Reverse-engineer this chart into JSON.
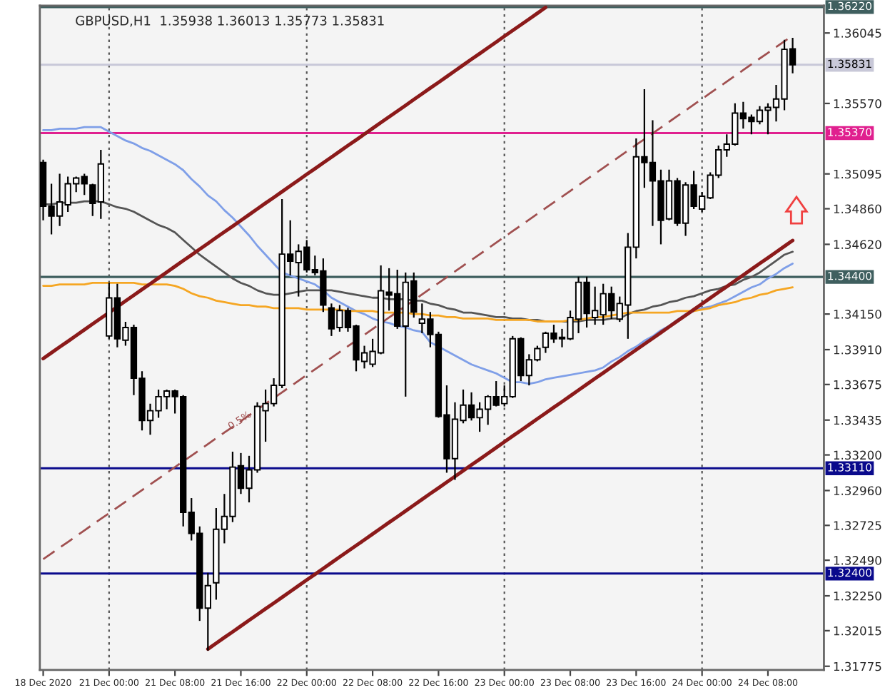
{
  "chart_data": {
    "type": "candlestick",
    "title": "GBPUSD,H1  1.35938 1.36013 1.35773 1.35831",
    "categories": [
      "18 Dec 2020",
      null,
      null,
      null,
      null,
      null,
      null,
      null,
      "21 Dec 00:00",
      null,
      null,
      null,
      null,
      null,
      null,
      null,
      "21 Dec 08:00",
      null,
      null,
      null,
      null,
      null,
      null,
      null,
      "21 Dec 16:00",
      null,
      null,
      null,
      null,
      null,
      null,
      null,
      "22 Dec 00:00",
      null,
      null,
      null,
      null,
      null,
      null,
      null,
      "22 Dec 08:00",
      null,
      null,
      null,
      null,
      null,
      null,
      null,
      "22 Dec 16:00",
      null,
      null,
      null,
      null,
      null,
      null,
      null,
      "23 Dec 00:00",
      null,
      null,
      null,
      null,
      null,
      null,
      null,
      "23 Dec 08:00",
      null,
      null,
      null,
      null,
      null,
      null,
      null,
      "23 Dec 16:00",
      null,
      null,
      null,
      null,
      null,
      null,
      null,
      "24 Dec 00:00",
      null,
      null,
      null,
      null,
      null,
      null,
      null,
      "24 Dec 08:00",
      null,
      null,
      null
    ],
    "ohlc": [
      [
        1.35172,
        1.35191,
        1.34782,
        1.34877
      ],
      [
        1.34877,
        1.35029,
        1.34687,
        1.34811
      ],
      [
        1.34811,
        1.35096,
        1.34744,
        1.34906
      ],
      [
        1.34887,
        1.35077,
        1.34839,
        1.35029
      ],
      [
        1.35029,
        1.35077,
        1.34972,
        1.35067
      ],
      [
        1.35077,
        1.35096,
        1.34953,
        1.35029
      ],
      [
        1.3502,
        1.35029,
        1.34811,
        1.34896
      ],
      [
        1.34906,
        1.35257,
        1.34792,
        1.35162
      ],
      [
        1.34002,
        1.34364,
        1.33983,
        1.34259
      ],
      [
        1.34259,
        1.34354,
        1.33926,
        1.33983
      ],
      [
        1.33974,
        1.34097,
        1.33936,
        1.34059
      ],
      [
        1.34059,
        1.34078,
        1.33603,
        1.33717
      ],
      [
        1.33717,
        1.33764,
        1.33365,
        1.33432
      ],
      [
        1.33432,
        1.33546,
        1.33336,
        1.33498
      ],
      [
        1.33498,
        1.33641,
        1.33451,
        1.33593
      ],
      [
        1.33593,
        1.33641,
        1.33508,
        1.33631
      ],
      [
        1.33631,
        1.33641,
        1.33479,
        1.33593
      ],
      [
        1.33593,
        1.33603,
        1.32718,
        1.32813
      ],
      [
        1.32813,
        1.32909,
        1.32623,
        1.32671
      ],
      [
        1.32671,
        1.32718,
        1.32081,
        1.32167
      ],
      [
        1.32167,
        1.32405,
        1.31881,
        1.32319
      ],
      [
        1.32338,
        1.32842,
        1.32224,
        1.32699
      ],
      [
        1.32699,
        1.32937,
        1.32604,
        1.32785
      ],
      [
        1.32785,
        1.33222,
        1.32747,
        1.33118
      ],
      [
        1.33127,
        1.33213,
        1.32937,
        1.32975
      ],
      [
        1.32975,
        1.33194,
        1.3288,
        1.33099
      ],
      [
        1.33099,
        1.33555,
        1.3308,
        1.33527
      ],
      [
        1.33498,
        1.33641,
        1.33289,
        1.33546
      ],
      [
        1.33546,
        1.33717,
        1.33527,
        1.33669
      ],
      [
        1.33669,
        1.34925,
        1.3365,
        1.34554
      ],
      [
        1.34554,
        1.34782,
        1.34411,
        1.34506
      ],
      [
        1.34497,
        1.3462,
        1.34268,
        1.34573
      ],
      [
        1.34601,
        1.34649,
        1.3443,
        1.34449
      ],
      [
        1.34449,
        1.34544,
        1.34411,
        1.3443
      ],
      [
        1.3444,
        1.34525,
        1.34164,
        1.34211
      ],
      [
        1.34192,
        1.34221,
        1.34002,
        1.3405
      ],
      [
        1.34059,
        1.34211,
        1.34031,
        1.34173
      ],
      [
        1.34173,
        1.34192,
        1.34031,
        1.34059
      ],
      [
        1.34069,
        1.34078,
        1.33764,
        1.33841
      ],
      [
        1.33831,
        1.33936,
        1.33783,
        1.33888
      ],
      [
        1.33812,
        1.33983,
        1.33793,
        1.33898
      ],
      [
        1.33888,
        1.34478,
        1.33879,
        1.34307
      ],
      [
        1.34297,
        1.34459,
        1.34173,
        1.34278
      ],
      [
        1.34287,
        1.34449,
        1.3405,
        1.34069
      ],
      [
        1.34069,
        1.3443,
        1.33593,
        1.34364
      ],
      [
        1.34373,
        1.3443,
        1.34126,
        1.34164
      ],
      [
        1.34088,
        1.34221,
        1.34021,
        1.34116
      ],
      [
        1.34116,
        1.34164,
        1.33926,
        1.34012
      ],
      [
        1.34012,
        1.34031,
        1.33451,
        1.3346
      ],
      [
        1.3347,
        1.33669,
        1.3308,
        1.33175
      ],
      [
        1.33175,
        1.33555,
        1.33032,
        1.33441
      ],
      [
        1.33432,
        1.33641,
        1.33413,
        1.33536
      ],
      [
        1.33536,
        1.33622,
        1.33432,
        1.33451
      ],
      [
        1.33451,
        1.33555,
        1.33356,
        1.33508
      ],
      [
        1.33508,
        1.33603,
        1.33403,
        1.33593
      ],
      [
        1.33593,
        1.33698,
        1.33527,
        1.33536
      ],
      [
        1.33546,
        1.33669,
        1.33527,
        1.33593
      ],
      [
        1.33593,
        1.34002,
        1.33584,
        1.33983
      ],
      [
        1.33983,
        1.33993,
        1.33698,
        1.33736
      ],
      [
        1.33736,
        1.33879,
        1.33669,
        1.33841
      ],
      [
        1.33841,
        1.33936,
        1.33831,
        1.33917
      ],
      [
        1.33926,
        1.34031,
        1.33888,
        1.34021
      ],
      [
        1.34021,
        1.34078,
        1.33955,
        1.33983
      ],
      [
        1.33983,
        1.3405,
        1.33926,
        1.33993
      ],
      [
        1.33983,
        1.34173,
        1.33974,
        1.34126
      ],
      [
        1.34116,
        1.34402,
        1.34021,
        1.34364
      ],
      [
        1.34364,
        1.34402,
        1.34059,
        1.34154
      ],
      [
        1.34126,
        1.34335,
        1.34078,
        1.34173
      ],
      [
        1.34145,
        1.34354,
        1.34078,
        1.34287
      ],
      [
        1.34287,
        1.34335,
        1.34116,
        1.34173
      ],
      [
        1.34116,
        1.34268,
        1.34097,
        1.34221
      ],
      [
        1.34211,
        1.34696,
        1.33983,
        1.34601
      ],
      [
        1.34601,
        1.35334,
        1.34525,
        1.3521
      ],
      [
        1.3521,
        1.35666,
        1.35001,
        1.35172
      ],
      [
        1.35172,
        1.35457,
        1.34744,
        1.35048
      ],
      [
        1.35048,
        1.35124,
        1.3462,
        1.34782
      ],
      [
        1.34792,
        1.35124,
        1.34782,
        1.35048
      ],
      [
        1.35048,
        1.35067,
        1.34744,
        1.34763
      ],
      [
        1.34763,
        1.35039,
        1.34677,
        1.3502
      ],
      [
        1.3502,
        1.35115,
        1.34858,
        1.34877
      ],
      [
        1.34858,
        1.34972,
        1.34839,
        1.34944
      ],
      [
        1.34934,
        1.35105,
        1.34925,
        1.35086
      ],
      [
        1.35086,
        1.35286,
        1.35067,
        1.35257
      ],
      [
        1.35257,
        1.35362,
        1.3521,
        1.35296
      ],
      [
        1.35296,
        1.35571,
        1.35286,
        1.35505
      ],
      [
        1.35505,
        1.35581,
        1.354,
        1.35467
      ],
      [
        1.35476,
        1.35495,
        1.35362,
        1.35448
      ],
      [
        1.35448,
        1.35552,
        1.35429,
        1.35524
      ],
      [
        1.35524,
        1.35571,
        1.35362,
        1.35543
      ],
      [
        1.35543,
        1.35695,
        1.35448,
        1.356
      ],
      [
        1.356,
        1.35999,
        1.35524,
        1.35935
      ],
      [
        1.35938,
        1.36013,
        1.35773,
        1.35831
      ]
    ],
    "series": [
      {
        "type": "line",
        "color": "#7f9fe8",
        "line_style": "solid",
        "values": [
          1.3539,
          1.3539,
          1.354,
          1.354,
          1.354,
          1.3541,
          1.3541,
          1.3541,
          1.3538,
          1.3535,
          1.3532,
          1.353,
          1.3527,
          1.3525,
          1.3522,
          1.3519,
          1.3516,
          1.3512,
          1.3506,
          1.3501,
          1.3495,
          1.3491,
          1.3485,
          1.348,
          1.3474,
          1.3468,
          1.3461,
          1.3455,
          1.3449,
          1.3443,
          1.3441,
          1.3439,
          1.3437,
          1.3435,
          1.3431,
          1.3426,
          1.3423,
          1.342,
          1.3417,
          1.3415,
          1.3412,
          1.341,
          1.3409,
          1.3407,
          1.3406,
          1.3404,
          1.3403,
          1.3396,
          1.3393,
          1.339,
          1.3387,
          1.3384,
          1.3381,
          1.3379,
          1.3377,
          1.3375,
          1.3372,
          1.3369,
          1.3369,
          1.3368,
          1.3369,
          1.3371,
          1.3372,
          1.3373,
          1.3374,
          1.3375,
          1.3376,
          1.3377,
          1.3379,
          1.3383,
          1.3386,
          1.339,
          1.3393,
          1.3397,
          1.34,
          1.3404,
          1.3407,
          1.3411,
          1.3415,
          1.3417,
          1.3419,
          1.342,
          1.3422,
          1.3424,
          1.3427,
          1.343,
          1.3433,
          1.3435,
          1.3439,
          1.3442,
          1.3446,
          1.3449
        ]
      },
      {
        "type": "line",
        "color": "#555555",
        "line_style": "solid",
        "values": [
          1.3489,
          1.3489,
          1.349,
          1.349,
          1.349,
          1.3491,
          1.3491,
          1.3491,
          1.3489,
          1.3487,
          1.3486,
          1.3484,
          1.3481,
          1.3478,
          1.3475,
          1.3473,
          1.347,
          1.3465,
          1.346,
          1.3455,
          1.3451,
          1.3447,
          1.3443,
          1.3439,
          1.3436,
          1.3434,
          1.3431,
          1.3429,
          1.3428,
          1.3428,
          1.3429,
          1.343,
          1.3431,
          1.3431,
          1.3431,
          1.3431,
          1.343,
          1.3429,
          1.3428,
          1.3427,
          1.3426,
          1.3426,
          1.3425,
          1.3425,
          1.3425,
          1.3424,
          1.3424,
          1.3422,
          1.3421,
          1.3419,
          1.3418,
          1.3416,
          1.3416,
          1.3415,
          1.3414,
          1.3413,
          1.3413,
          1.3412,
          1.3412,
          1.3411,
          1.3411,
          1.341,
          1.341,
          1.341,
          1.341,
          1.341,
          1.3411,
          1.3411,
          1.3411,
          1.3412,
          1.3412,
          1.3415,
          1.3417,
          1.3418,
          1.342,
          1.3421,
          1.3423,
          1.3424,
          1.3426,
          1.3427,
          1.3429,
          1.3431,
          1.3432,
          1.3434,
          1.3435,
          1.3438,
          1.344,
          1.3443,
          1.3447,
          1.3451,
          1.3455,
          1.3457
        ]
      },
      {
        "type": "line",
        "color": "#f5a623",
        "line_style": "solid",
        "values": [
          1.3434,
          1.3434,
          1.3435,
          1.3435,
          1.3435,
          1.3435,
          1.3436,
          1.3436,
          1.3436,
          1.3436,
          1.3436,
          1.3436,
          1.3435,
          1.3435,
          1.3435,
          1.3435,
          1.3434,
          1.3432,
          1.3429,
          1.3427,
          1.3426,
          1.3424,
          1.3423,
          1.3422,
          1.3421,
          1.3421,
          1.342,
          1.342,
          1.3419,
          1.3419,
          1.3419,
          1.3419,
          1.3418,
          1.3418,
          1.3418,
          1.3418,
          1.3418,
          1.3417,
          1.3417,
          1.3417,
          1.3417,
          1.3416,
          1.3416,
          1.3416,
          1.3416,
          1.3415,
          1.3415,
          1.3414,
          1.3414,
          1.3413,
          1.3413,
          1.3412,
          1.3412,
          1.3412,
          1.3412,
          1.3411,
          1.3411,
          1.3411,
          1.3411,
          1.3411,
          1.341,
          1.341,
          1.341,
          1.341,
          1.3411,
          1.3411,
          1.3412,
          1.3413,
          1.3413,
          1.3414,
          1.3415,
          1.3416,
          1.3416,
          1.3416,
          1.3416,
          1.3416,
          1.3416,
          1.3417,
          1.3417,
          1.3417,
          1.3418,
          1.3419,
          1.3421,
          1.3422,
          1.3423,
          1.3425,
          1.3426,
          1.3428,
          1.3429,
          1.3431,
          1.3432,
          1.3433
        ]
      },
      {
        "type": "line",
        "color": "#8b1a1a",
        "line_style": "solid",
        "values": [
          null,
          null,
          null,
          null,
          null,
          null,
          null,
          null,
          null,
          null,
          null,
          null,
          null,
          null,
          null,
          null,
          null,
          null,
          null,
          null,
          1.31891,
          1.3193,
          1.31969,
          1.32007,
          1.32046,
          1.32085,
          1.32124,
          1.32163,
          1.32201,
          1.3224,
          1.32279,
          1.32318,
          1.32357,
          1.32395,
          1.32434,
          1.32473,
          1.32512,
          1.32551,
          1.32589,
          1.32628,
          1.32667,
          1.32706,
          1.32745,
          1.32783,
          1.32822,
          1.32861,
          1.329,
          1.32939,
          1.32977,
          1.33016,
          1.33055,
          1.33094,
          1.33133,
          1.33171,
          1.3321,
          1.33249,
          1.33288,
          1.33327,
          1.33365,
          1.33404,
          1.33443,
          1.33482,
          1.33521,
          1.33559,
          1.33598,
          1.33637,
          1.33676,
          1.33715,
          1.33753,
          1.33792,
          1.33831,
          1.3387,
          1.33909,
          1.33947,
          1.33986,
          1.34025,
          1.34064,
          1.34103,
          1.34141,
          1.3418,
          1.34219,
          1.34258,
          1.34297,
          1.34335,
          1.34374,
          1.34413,
          1.34452,
          1.34491,
          1.34529,
          1.34568,
          1.34607,
          1.34646
        ]
      },
      {
        "type": "line",
        "color": "#8b1a1a",
        "line_style": "solid",
        "values": [
          1.3385,
          1.33889,
          1.33928,
          1.33966,
          1.34005,
          1.34044,
          1.34083,
          1.34122,
          1.3416,
          1.34199,
          1.34238,
          1.34277,
          1.34316,
          1.34354,
          1.34393,
          1.34432,
          1.34471,
          1.3451,
          1.34548,
          1.34587,
          1.34626,
          1.34665,
          1.34704,
          1.34742,
          1.34781,
          1.3482,
          1.34859,
          1.34898,
          1.34936,
          1.34975,
          1.35014,
          1.35053,
          1.35092,
          1.3513,
          1.35169,
          1.35208,
          1.35247,
          1.35286,
          1.35324,
          1.35363,
          1.35402,
          1.35441,
          1.3548,
          1.35518,
          1.35557,
          1.35596,
          1.35635,
          1.35674,
          1.35712,
          1.35751,
          1.3579,
          1.35829,
          1.35868,
          1.35906,
          1.35945,
          1.35984,
          1.36023,
          1.36062,
          1.361,
          1.36139,
          1.36178,
          1.36217,
          null,
          null,
          null,
          null,
          null,
          null,
          null,
          null,
          null,
          null,
          null,
          null,
          null,
          null,
          null,
          null,
          null,
          null,
          null,
          null,
          null,
          null,
          null,
          null,
          null,
          null,
          null,
          null,
          null,
          null
        ]
      },
      {
        "type": "line",
        "color": "#a05050",
        "line_style": "dashed",
        "values": [
          1.32497,
          1.32536,
          1.32575,
          1.32613,
          1.32652,
          1.32691,
          1.3273,
          1.32769,
          1.32807,
          1.32846,
          1.32885,
          1.32924,
          1.32963,
          1.33001,
          1.3304,
          1.33079,
          1.33118,
          1.33157,
          1.33195,
          1.33234,
          1.33273,
          1.33312,
          1.33351,
          1.33389,
          1.33428,
          1.33467,
          1.33506,
          1.33545,
          1.33583,
          1.33622,
          1.33661,
          1.337,
          1.33739,
          1.33777,
          1.33816,
          1.33855,
          1.33894,
          1.33933,
          1.33971,
          1.3401,
          1.34049,
          1.34088,
          1.34127,
          1.34165,
          1.34204,
          1.34243,
          1.34282,
          1.34321,
          1.34359,
          1.34398,
          1.34437,
          1.34476,
          1.34515,
          1.34553,
          1.34592,
          1.34631,
          1.3467,
          1.34709,
          1.34747,
          1.34786,
          1.34825,
          1.34864,
          1.34903,
          1.34941,
          1.3498,
          1.35019,
          1.35058,
          1.35097,
          1.35135,
          1.35174,
          1.35213,
          1.35252,
          1.35291,
          1.35329,
          1.35368,
          1.35407,
          1.35446,
          1.35485,
          1.35523,
          1.35562,
          1.35601,
          1.3564,
          1.35679,
          1.35717,
          1.35756,
          1.35795,
          1.35834,
          1.35873,
          1.35911,
          1.3595,
          1.35989,
          1.36028
        ]
      }
    ],
    "ylim": [
      1.3175,
      1.3623
    ],
    "yticks": [
      1.36045,
      {
        "value": 1.3557,
        "label": "1.35570"
      },
      1.35095,
      {
        "value": 1.3486,
        "label": "1.34860"
      },
      {
        "value": 1.3462,
        "label": "1.34620"
      },
      {
        "value": 1.3415,
        "label": "1.34150"
      },
      {
        "value": 1.3391,
        "label": "1.33910"
      },
      1.33675,
      1.33435,
      {
        "value": 1.332,
        "label": "1.33200"
      },
      {
        "value": 1.3296,
        "label": "1.32960"
      },
      1.32725,
      {
        "value": 1.3249,
        "label": "1.32490"
      },
      {
        "value": 1.3225,
        "label": "1.32250"
      },
      1.32015,
      1.31775
    ],
    "ref_lines": [
      {
        "axis": "y",
        "value": 1.3622,
        "label": "1.36220",
        "color": "#3f5f5f"
      },
      {
        "axis": "y",
        "value": 1.35831,
        "label": "1.35831",
        "color": "#c8c8d8"
      },
      {
        "axis": "y",
        "value": 1.3537,
        "label": "1.35370",
        "color": "#e0208f"
      },
      {
        "axis": "y",
        "value": 1.344,
        "label": "1.34400",
        "color": "#3f5f5f"
      },
      {
        "axis": "y",
        "value": 1.3311,
        "label": "1.33110",
        "color": "#0a0a8c"
      },
      {
        "axis": "y",
        "value": 1.324,
        "label": "1.32400",
        "color": "#0a0a8c"
      },
      {
        "axis": "x",
        "value": "21 Dec 00:00",
        "color": "#555555",
        "line_style": "dotted"
      },
      {
        "axis": "x",
        "value": "22 Dec 00:00",
        "color": "#555555",
        "line_style": "dotted"
      },
      {
        "axis": "x",
        "value": "23 Dec 00:00",
        "color": "#555555",
        "line_style": "dotted"
      },
      {
        "axis": "x",
        "value": "24 Dec 00:00",
        "color": "#555555",
        "line_style": "dotted"
      }
    ],
    "annotations": [
      {
        "text": "0.5%",
        "y": 1.3343
      }
    ],
    "grid": false,
    "legend": false
  }
}
